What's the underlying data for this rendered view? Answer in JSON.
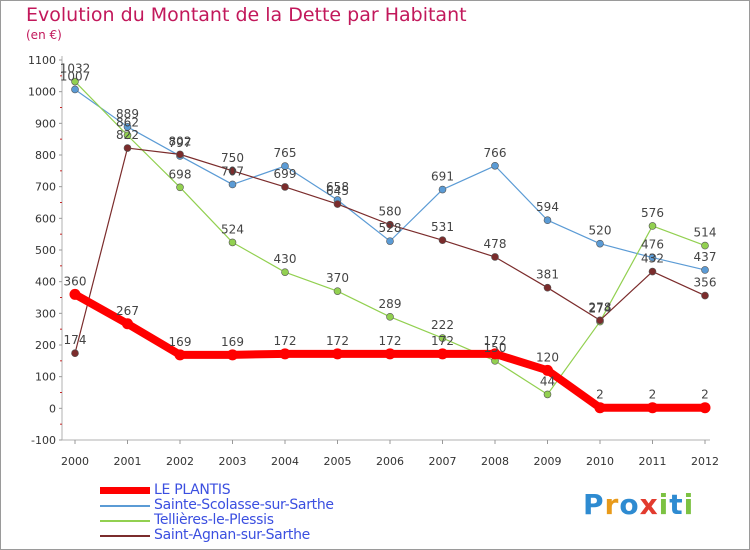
{
  "title": "Evolution du Montant de la Dette par Habitant",
  "unit": "(en €)",
  "logo": {
    "letters": [
      "P",
      "r",
      "o",
      "x",
      "i",
      "t",
      "i"
    ],
    "colors": [
      "#2e8bd1",
      "#e89a1a",
      "#2e8bd1",
      "#e23b2e",
      "#7cc242",
      "#2e8bd1",
      "#7cc242"
    ]
  },
  "chart_data": {
    "type": "line",
    "title": "Evolution du Montant de la Dette par Habitant",
    "ylabel": "(en €)",
    "xlabel": "",
    "x": [
      "2000",
      "2001",
      "2002",
      "2003",
      "2004",
      "2005",
      "2006",
      "2007",
      "2008",
      "2009",
      "2010",
      "2011",
      "2012"
    ],
    "ylim": [
      -100,
      1100
    ],
    "yticks": [
      -100,
      0,
      100,
      200,
      300,
      400,
      500,
      600,
      700,
      800,
      900,
      1000,
      1100
    ],
    "grid": false,
    "legend_position": "bottom-left",
    "series": [
      {
        "name": "LE PLANTIS",
        "color": "#ff0000",
        "values": [
          360,
          267,
          169,
          169,
          172,
          172,
          172,
          172,
          172,
          120,
          2,
          2,
          2
        ]
      },
      {
        "name": "Sainte-Scolasse-sur-Sarthe",
        "color": "#5b9bd5",
        "values": [
          1007,
          889,
          797,
          707,
          765,
          658,
          528,
          691,
          766,
          594,
          520,
          476,
          437
        ]
      },
      {
        "name": "Tellières-le-Plessis",
        "color": "#92d050",
        "values": [
          1032,
          862,
          698,
          524,
          430,
          370,
          289,
          222,
          150,
          44,
          274,
          576,
          514
        ]
      },
      {
        "name": "Saint-Agnan-sur-Sarthe",
        "color": "#7b2c2c",
        "values": [
          174,
          822,
          802,
          750,
          699,
          645,
          580,
          531,
          478,
          381,
          278,
          432,
          356
        ]
      }
    ]
  }
}
